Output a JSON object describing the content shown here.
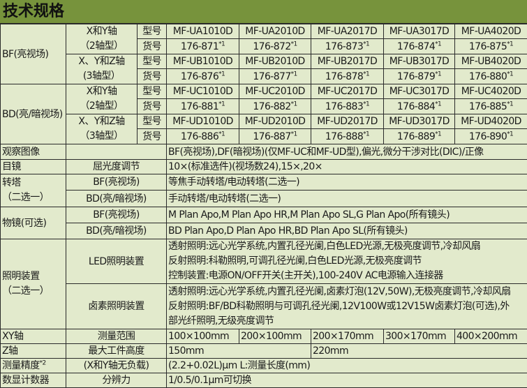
{
  "title": "技术规格",
  "labels": {
    "model": "型号",
    "part": "货号",
    "sup1": "*1",
    "sup2": "*2"
  },
  "groups": [
    {
      "name": "BF(亮视场)",
      "axes": [
        {
          "line1": "X和Y轴",
          "line2": "（2轴型）",
          "models": [
            "MF-UA1010D",
            "MF-UA2010D",
            "MF-UA2017D",
            "MF-UA3017D",
            "MF-UA4020D"
          ],
          "parts": [
            "176-871",
            "176-872",
            "176-873",
            "176-874",
            "176-875"
          ]
        },
        {
          "line1": "X、Y和Z轴",
          "line2": "(3轴型）",
          "models": [
            "MF-UB1010D",
            "MF-UB2010D",
            "MF-UB2017D",
            "MF-UB3017D",
            "MF-UB4020D"
          ],
          "parts": [
            "176-876",
            "176-877",
            "176-878",
            "176-879",
            "176-880"
          ]
        }
      ]
    },
    {
      "name": "BD(亮/暗视场)",
      "axes": [
        {
          "line1": "X和Y轴",
          "line2": "（2轴型）",
          "models": [
            "MF-UC1010D",
            "MF-UC2010D",
            "MF-UC2017D",
            "MF-UC3017D",
            "MF-UC4020D"
          ],
          "parts": [
            "176-881",
            "176-882",
            "176-883",
            "176-884",
            "176-885"
          ]
        },
        {
          "line1": "X、Y和Z轴",
          "line2": "（3轴型）",
          "models": [
            "MF-UD1010D",
            "MF-UD2010D",
            "MF-UD2017D",
            "MF-UD3017D",
            "MF-UD4020D"
          ],
          "parts": [
            "176-886",
            "176-887",
            "176-888",
            "176-889",
            "176-890"
          ]
        }
      ]
    }
  ],
  "specs": {
    "observation": {
      "label": "观察图像",
      "value": "BF(亮视场),DF(暗视场)(仅MF-UC和MF-UD型),偏光,微分干涉对比(DIC)/正像"
    },
    "eyepiece": {
      "label": "目镜",
      "sub": "屈光度调节",
      "value": "10×(标准选件)(视场数24),15×,20×"
    },
    "turret": {
      "label1": "转塔",
      "label2": "（二选一）",
      "rows": [
        {
          "sub": "BF(亮视场)",
          "value": "等焦手动转塔/电动转塔(二选一)"
        },
        {
          "sub": "BD(亮/暗视场)",
          "value": "手动转塔/电动转塔(二选一)"
        }
      ]
    },
    "objective": {
      "label": "物镜(可选)",
      "rows": [
        {
          "sub": "BF(亮视场)",
          "value": "M Plan Apo,M Plan Apo HR,M Plan Apo SL,G Plan Apo(所有镜头)"
        },
        {
          "sub": "BD(亮/暗视场)",
          "value": "BD Plan Apo,D Plan Apo HR,BD Plan Apo SL(所有镜头)"
        }
      ]
    },
    "illumination": {
      "label1": "照明装置",
      "label2": "（二选一）",
      "rows": [
        {
          "sub": "LED照明装置",
          "lines": [
            "透射照明:远心光学系统,内置孔径光阑,白色LED光源,无极亮度调节,冷却风扇",
            "反射照明:科勒照明,可调孔径光阑,白色LED光源,无极亮度调节",
            "控制装置:电源ON/OFF开关(主开关),100-240V AC电源输入连接器"
          ]
        },
        {
          "sub": "卤素照明装置",
          "lines": [
            "透射照明:远心光学系统,内置孔径光阑,卤素灯泡(12V,50W),无极亮度调节,冷却风扇",
            "反射照明:BF/BD科勒照明与可调孔径光阑,12V100W或12V15W卤素灯泡(可选),外",
            "部光纤照明,无级亮度调节"
          ]
        }
      ]
    },
    "xy": {
      "label": "XY轴",
      "sub": "测量范围",
      "values": [
        "100×100mm",
        "200×100mm",
        "200×170mm",
        "300×170mm",
        "400×200mm"
      ]
    },
    "z": {
      "label": "Z轴",
      "sub": "最大工件高度",
      "values": [
        "150mm",
        "220mm"
      ]
    },
    "accuracy": {
      "label": "测量精度",
      "sub": "(X和Y轴无负载)",
      "value": "(2.2+0.02L)μm L:测量长度(mm)"
    },
    "counter": {
      "label": "数显计数器",
      "sub": "分辨力",
      "value": "1/0.5/0.1μm可切换"
    }
  },
  "colors": {
    "header": "#77933c",
    "cell": "#e2eacc",
    "border": "#2a2a2a"
  }
}
